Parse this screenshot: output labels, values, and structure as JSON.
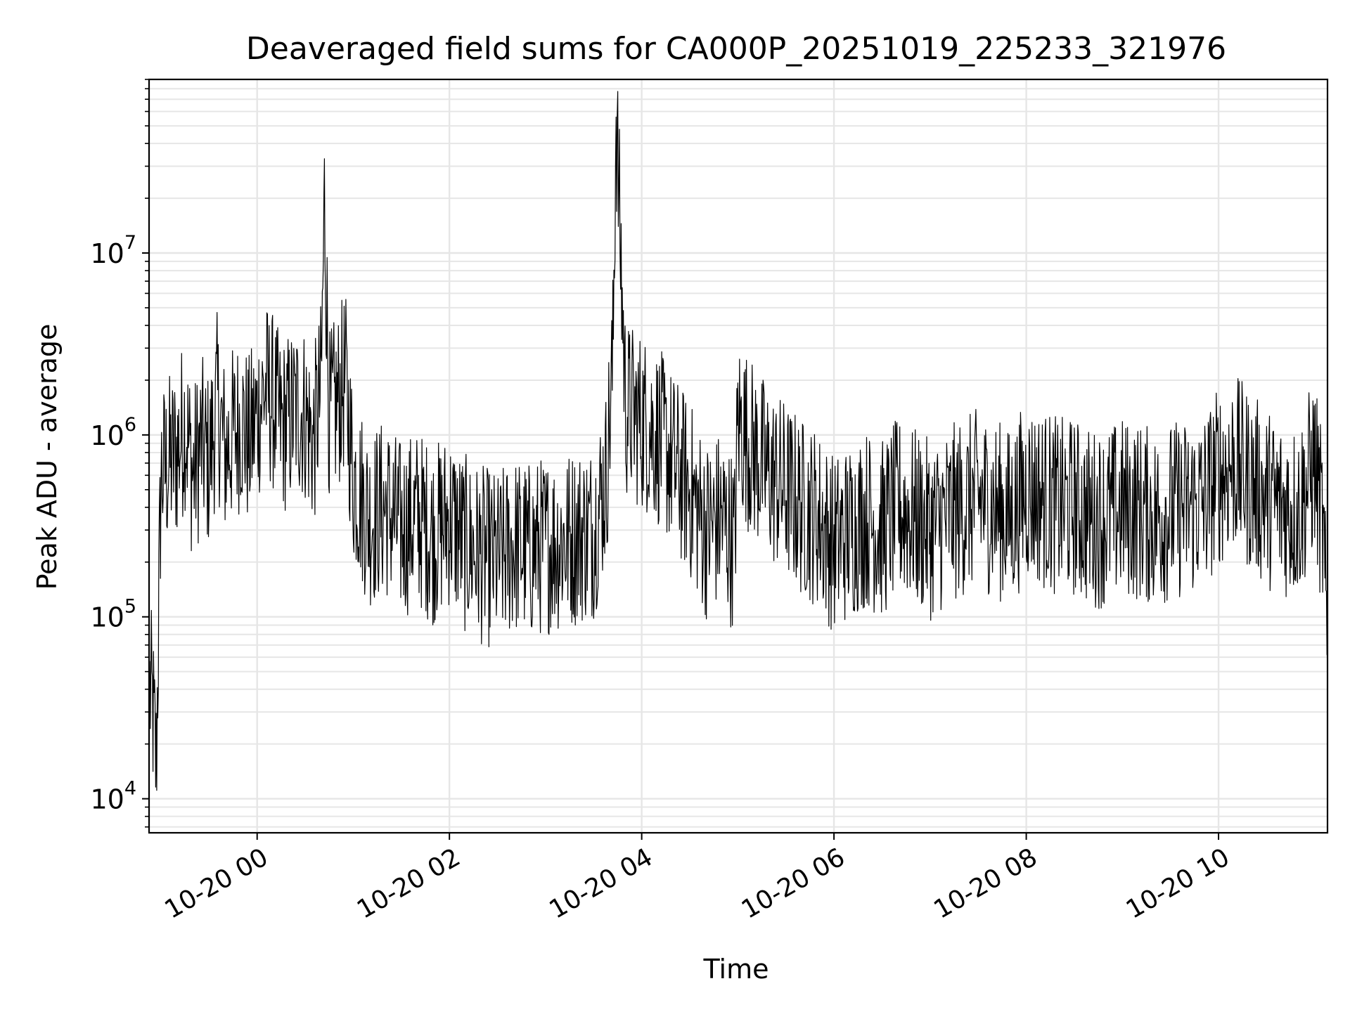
{
  "chart_data": {
    "type": "line",
    "title": "Deaveraged field sums for CA000P_20251019_225233_321976",
    "xlabel": "Time",
    "ylabel": "Peak ADU - average",
    "yscale": "log",
    "ylim": [
      6500,
      90000000
    ],
    "xlim": [
      "2025-10-19T22:52:33",
      "2025-10-20T11:08:00"
    ],
    "x_ticks": [
      {
        "value": "2025-10-20T00:00",
        "label": "10-20 00"
      },
      {
        "value": "2025-10-20T02:00",
        "label": "10-20 02"
      },
      {
        "value": "2025-10-20T04:00",
        "label": "10-20 04"
      },
      {
        "value": "2025-10-20T06:00",
        "label": "10-20 06"
      },
      {
        "value": "2025-10-20T08:00",
        "label": "10-20 08"
      },
      {
        "value": "2025-10-20T10:00",
        "label": "10-20 10"
      }
    ],
    "y_ticks": [
      {
        "value": 10000,
        "base": "10",
        "exp": "4"
      },
      {
        "value": 100000,
        "base": "10",
        "exp": "5"
      },
      {
        "value": 1000000,
        "base": "10",
        "exp": "6"
      },
      {
        "value": 10000000,
        "base": "10",
        "exp": "7"
      }
    ],
    "grid": true,
    "line_color": "#000000",
    "grid_color": "#e6e6e6",
    "series": [
      {
        "x": [
          "2025-10-19T22:53",
          "2025-10-19T22:55",
          "2025-10-19T22:57",
          "2025-10-19T23:00",
          "2025-10-19T23:05",
          "2025-10-19T23:10",
          "2025-10-19T23:15",
          "2025-10-19T23:20",
          "2025-10-19T23:25",
          "2025-10-19T23:30",
          "2025-10-19T23:35",
          "2025-10-19T23:40",
          "2025-10-19T23:45",
          "2025-10-19T23:50",
          "2025-10-19T23:55",
          "2025-10-20T00:00",
          "2025-10-20T00:05",
          "2025-10-20T00:10",
          "2025-10-20T00:15",
          "2025-10-20T00:20",
          "2025-10-20T00:25",
          "2025-10-20T00:30",
          "2025-10-20T00:35",
          "2025-10-20T00:40",
          "2025-10-20T00:42",
          "2025-10-20T00:45",
          "2025-10-20T00:50",
          "2025-10-20T00:55",
          "2025-10-20T01:00",
          "2025-10-20T01:10",
          "2025-10-20T01:20",
          "2025-10-20T01:30",
          "2025-10-20T01:40",
          "2025-10-20T01:50",
          "2025-10-20T02:00",
          "2025-10-20T02:10",
          "2025-10-20T02:20",
          "2025-10-20T02:30",
          "2025-10-20T02:40",
          "2025-10-20T02:50",
          "2025-10-20T03:00",
          "2025-10-20T03:10",
          "2025-10-20T03:20",
          "2025-10-20T03:30",
          "2025-10-20T03:38",
          "2025-10-20T03:42",
          "2025-10-20T03:44",
          "2025-10-20T03:50",
          "2025-10-20T04:00",
          "2025-10-20T04:10",
          "2025-10-20T04:20",
          "2025-10-20T04:30",
          "2025-10-20T04:40",
          "2025-10-20T04:50",
          "2025-10-20T04:58",
          "2025-10-20T05:00",
          "2025-10-20T05:10",
          "2025-10-20T05:20",
          "2025-10-20T05:30",
          "2025-10-20T05:40",
          "2025-10-20T05:50",
          "2025-10-20T06:00",
          "2025-10-20T06:10",
          "2025-10-20T06:20",
          "2025-10-20T06:30",
          "2025-10-20T06:40",
          "2025-10-20T06:50",
          "2025-10-20T07:00",
          "2025-10-20T07:10",
          "2025-10-20T07:20",
          "2025-10-20T07:30",
          "2025-10-20T07:40",
          "2025-10-20T07:50",
          "2025-10-20T08:00",
          "2025-10-20T08:10",
          "2025-10-20T08:20",
          "2025-10-20T08:30",
          "2025-10-20T08:40",
          "2025-10-20T08:50",
          "2025-10-20T09:00",
          "2025-10-20T09:10",
          "2025-10-20T09:20",
          "2025-10-20T09:30",
          "2025-10-20T09:40",
          "2025-10-20T09:50",
          "2025-10-20T10:00",
          "2025-10-20T10:10",
          "2025-10-20T10:20",
          "2025-10-20T10:30",
          "2025-10-20T10:40",
          "2025-10-20T10:50",
          "2025-10-20T11:00",
          "2025-10-20T11:05",
          "2025-10-20T11:08"
        ],
        "y": [
          40000,
          30000,
          15000,
          600000,
          700000,
          800000,
          1200000,
          600000,
          900000,
          700000,
          1500000,
          800000,
          1000000,
          1200000,
          900000,
          1300000,
          1800000,
          1500000,
          1100000,
          1200000,
          1400000,
          1300000,
          900000,
          1800000,
          20000000,
          1200000,
          1500000,
          2000000,
          600000,
          350000,
          400000,
          300000,
          350000,
          280000,
          350000,
          250000,
          220000,
          200000,
          250000,
          230000,
          250000,
          260000,
          280000,
          300000,
          600000,
          2500000,
          60000000,
          1400000,
          1200000,
          1000000,
          700000,
          500000,
          300000,
          350000,
          250000,
          1200000,
          800000,
          600000,
          500000,
          400000,
          350000,
          250000,
          300000,
          350000,
          300000,
          400000,
          350000,
          300000,
          350000,
          400000,
          450000,
          400000,
          350000,
          500000,
          450000,
          400000,
          400000,
          350000,
          350000,
          400000,
          380000,
          350000,
          380000,
          400000,
          420000,
          600000,
          700000,
          550000,
          450000,
          400000,
          380000,
          700000,
          300000,
          60000
        ]
      }
    ]
  }
}
